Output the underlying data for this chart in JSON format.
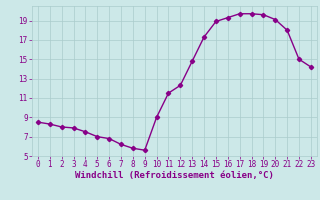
{
  "x": [
    0,
    1,
    2,
    3,
    4,
    5,
    6,
    7,
    8,
    9,
    10,
    11,
    12,
    13,
    14,
    15,
    16,
    17,
    18,
    19,
    20,
    21,
    22,
    23
  ],
  "y": [
    8.5,
    8.3,
    8.0,
    7.9,
    7.5,
    7.0,
    6.8,
    6.2,
    5.8,
    5.6,
    9.0,
    11.5,
    12.3,
    14.8,
    17.3,
    18.9,
    19.3,
    19.7,
    19.7,
    19.6,
    19.1,
    18.0,
    15.0,
    14.2
  ],
  "xlabel": "Windchill (Refroidissement éolien,°C)",
  "bg_color": "#cce8e8",
  "line_color": "#880088",
  "marker": "D",
  "marker_size": 2.2,
  "line_width": 1.0,
  "xlim": [
    -0.5,
    23.5
  ],
  "ylim": [
    5,
    20.5
  ],
  "yticks": [
    5,
    7,
    9,
    11,
    13,
    15,
    17,
    19
  ],
  "xticks": [
    0,
    1,
    2,
    3,
    4,
    5,
    6,
    7,
    8,
    9,
    10,
    11,
    12,
    13,
    14,
    15,
    16,
    17,
    18,
    19,
    20,
    21,
    22,
    23
  ],
  "grid_color": "#aacccc",
  "font_color": "#880088",
  "tick_fontsize": 5.5,
  "xlabel_fontsize": 6.5
}
